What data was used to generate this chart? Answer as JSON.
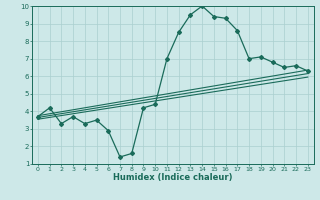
{
  "xlabel": "Humidex (Indice chaleur)",
  "xlim": [
    -0.5,
    23.5
  ],
  "ylim": [
    1,
    10
  ],
  "xticks": [
    0,
    1,
    2,
    3,
    4,
    5,
    6,
    7,
    8,
    9,
    10,
    11,
    12,
    13,
    14,
    15,
    16,
    17,
    18,
    19,
    20,
    21,
    22,
    23
  ],
  "yticks": [
    1,
    2,
    3,
    4,
    5,
    6,
    7,
    8,
    9,
    10
  ],
  "bg_color": "#cde8e8",
  "grid_color": "#aacfcf",
  "line_color": "#1a6b5a",
  "line1_x": [
    0,
    1,
    2,
    3,
    4,
    5,
    6,
    7,
    8,
    9,
    10,
    11,
    12,
    13,
    14,
    15,
    16,
    17,
    18,
    19,
    20,
    21,
    22,
    23
  ],
  "line1_y": [
    3.7,
    4.2,
    3.3,
    3.7,
    3.3,
    3.5,
    2.9,
    1.4,
    1.6,
    4.2,
    4.4,
    7.0,
    8.5,
    9.5,
    10.0,
    9.4,
    9.3,
    8.6,
    7.0,
    7.1,
    6.8,
    6.5,
    6.6,
    6.3
  ],
  "line2_x": [
    0,
    23
  ],
  "line2_y": [
    3.75,
    6.35
  ],
  "line3_x": [
    0,
    23
  ],
  "line3_y": [
    3.65,
    6.15
  ],
  "line4_x": [
    0,
    23
  ],
  "line4_y": [
    3.55,
    5.95
  ]
}
